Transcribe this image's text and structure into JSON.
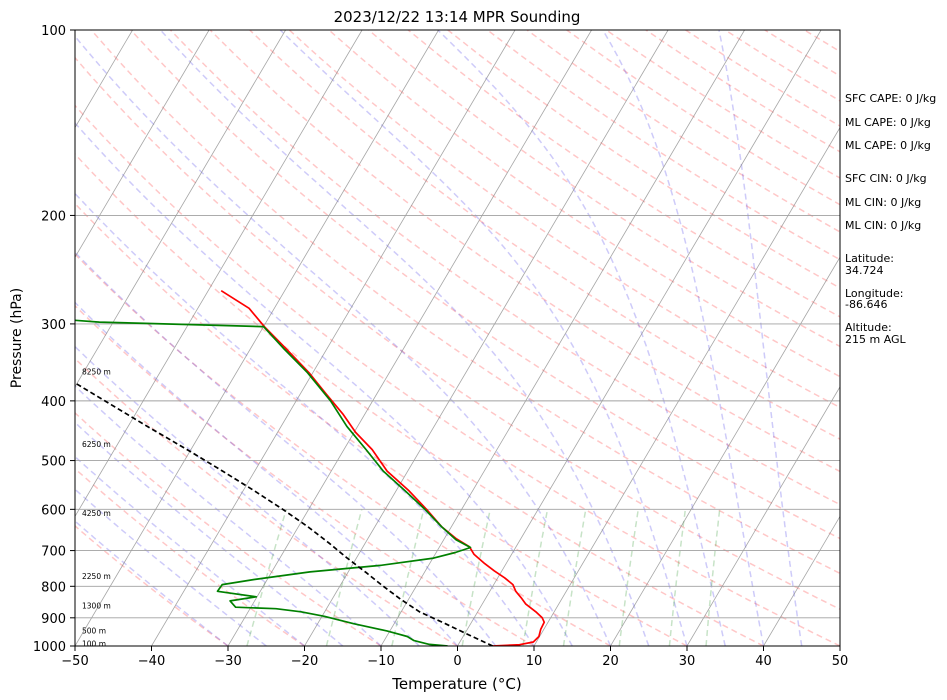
{
  "chart_data": {
    "type": "line",
    "title": "2023/12/22 13:14 MPR Sounding",
    "xlabel": "Temperature (°C)",
    "ylabel": "Pressure (hPa)",
    "xlim": [
      -50,
      50
    ],
    "ylim": [
      1000,
      100
    ],
    "y_scale": "log",
    "x_ticks": [
      "−50",
      "−40",
      "−30",
      "−20",
      "−10",
      "0",
      "10",
      "20",
      "30",
      "40",
      "50"
    ],
    "y_ticks": [
      "100",
      "200",
      "300",
      "400",
      "500",
      "600",
      "700",
      "800",
      "900",
      "1000"
    ],
    "grid": true,
    "height_labels": [
      {
        "text": "100 m",
        "p": 994
      },
      {
        "text": "500 m",
        "p": 948
      },
      {
        "text": "1300 m",
        "p": 862
      },
      {
        "text": "2250 m",
        "p": 772
      },
      {
        "text": "4250 m",
        "p": 610
      },
      {
        "text": "6250 m",
        "p": 472
      },
      {
        "text": "8250 m",
        "p": 360
      }
    ],
    "series": [
      {
        "color": "#ff0000",
        "points": [
          {
            "p": 1000,
            "t": 4.6
          },
          {
            "p": 995,
            "t": 8.0
          },
          {
            "p": 985,
            "t": 9.6
          },
          {
            "p": 965,
            "t": 9.9
          },
          {
            "p": 940,
            "t": 9.6
          },
          {
            "p": 915,
            "t": 9.5
          },
          {
            "p": 900,
            "t": 8.9
          },
          {
            "p": 880,
            "t": 7.6
          },
          {
            "p": 855,
            "t": 5.7
          },
          {
            "p": 835,
            "t": 4.6
          },
          {
            "p": 815,
            "t": 3.4
          },
          {
            "p": 795,
            "t": 2.5
          },
          {
            "p": 775,
            "t": 0.9
          },
          {
            "p": 755,
            "t": -1.0
          },
          {
            "p": 735,
            "t": -2.8
          },
          {
            "p": 710,
            "t": -4.9
          },
          {
            "p": 690,
            "t": -6.1
          },
          {
            "p": 670,
            "t": -8.4
          },
          {
            "p": 640,
            "t": -11.3
          },
          {
            "p": 600,
            "t": -14.6
          },
          {
            "p": 560,
            "t": -18.3
          },
          {
            "p": 520,
            "t": -22.7
          },
          {
            "p": 480,
            "t": -26.3
          },
          {
            "p": 450,
            "t": -29.8
          },
          {
            "p": 420,
            "t": -32.9
          },
          {
            "p": 390,
            "t": -36.6
          },
          {
            "p": 360,
            "t": -40.5
          },
          {
            "p": 330,
            "t": -45.2
          },
          {
            "p": 303,
            "t": -49.9
          },
          {
            "p": 283,
            "t": -53.3
          },
          {
            "p": 265,
            "t": -58.3
          }
        ]
      },
      {
        "color": "#008000",
        "points": [
          {
            "p": 1000,
            "t": -1.3
          },
          {
            "p": 994,
            "t": -3.8
          },
          {
            "p": 980,
            "t": -6.1
          },
          {
            "p": 965,
            "t": -7.3
          },
          {
            "p": 945,
            "t": -10.4
          },
          {
            "p": 920,
            "t": -15.3
          },
          {
            "p": 895,
            "t": -19.7
          },
          {
            "p": 880,
            "t": -23.1
          },
          {
            "p": 870,
            "t": -26.6
          },
          {
            "p": 865,
            "t": -32.0
          },
          {
            "p": 845,
            "t": -33.2
          },
          {
            "p": 832,
            "t": -30.1
          },
          {
            "p": 815,
            "t": -35.6
          },
          {
            "p": 795,
            "t": -35.5
          },
          {
            "p": 780,
            "t": -31.7
          },
          {
            "p": 758,
            "t": -25.0
          },
          {
            "p": 740,
            "t": -16.3
          },
          {
            "p": 720,
            "t": -9.9
          },
          {
            "p": 705,
            "t": -7.5
          },
          {
            "p": 692,
            "t": -5.9
          },
          {
            "p": 672,
            "t": -8.4
          },
          {
            "p": 640,
            "t": -11.3
          },
          {
            "p": 600,
            "t": -14.8
          },
          {
            "p": 560,
            "t": -18.8
          },
          {
            "p": 520,
            "t": -23.2
          },
          {
            "p": 480,
            "t": -27.1
          },
          {
            "p": 440,
            "t": -31.4
          },
          {
            "p": 400,
            "t": -35.5
          },
          {
            "p": 360,
            "t": -40.7
          },
          {
            "p": 330,
            "t": -45.5
          },
          {
            "p": 303,
            "t": -50.0
          },
          {
            "p": 298,
            "t": -71.8
          },
          {
            "p": 288,
            "t": -88.6
          }
        ]
      },
      {
        "color": "#000000",
        "dashed": true,
        "points": [
          {
            "p": 1000,
            "t": 4.6
          },
          {
            "p": 960,
            "t": 0.7
          },
          {
            "p": 920,
            "t": -3.3
          },
          {
            "p": 880,
            "t": -7.6
          },
          {
            "p": 840,
            "t": -11.0
          },
          {
            "p": 800,
            "t": -14.3
          },
          {
            "p": 760,
            "t": -17.6
          },
          {
            "p": 720,
            "t": -21.2
          },
          {
            "p": 680,
            "t": -24.8
          },
          {
            "p": 640,
            "t": -28.8
          },
          {
            "p": 600,
            "t": -33.4
          },
          {
            "p": 560,
            "t": -38.5
          },
          {
            "p": 520,
            "t": -44.2
          },
          {
            "p": 480,
            "t": -50.5
          },
          {
            "p": 440,
            "t": -57.5
          },
          {
            "p": 400,
            "t": -65.0
          },
          {
            "p": 360,
            "t": -73.3
          },
          {
            "p": 320,
            "t": -82.5
          },
          {
            "p": 272,
            "t": -95.0
          }
        ]
      }
    ]
  },
  "sidebar": {
    "sfc_cape": "SFC CAPE: 0 J/kg",
    "ml_cape_1": "ML CAPE: 0 J/kg",
    "ml_cape_2": "ML CAPE: 0 J/kg",
    "sfc_cin": "SFC CIN: 0 J/kg",
    "ml_cin_1": "ML CIN: 0 J/kg",
    "ml_cin_2": "ML CIN: 0 J/kg",
    "latitude_label": "Latitude:",
    "latitude_value": "34.724",
    "longitude_label": "Longitude:",
    "longitude_value": "-86.646",
    "altitude_label": "Altitude:",
    "altitude_value": "215 m AGL"
  }
}
